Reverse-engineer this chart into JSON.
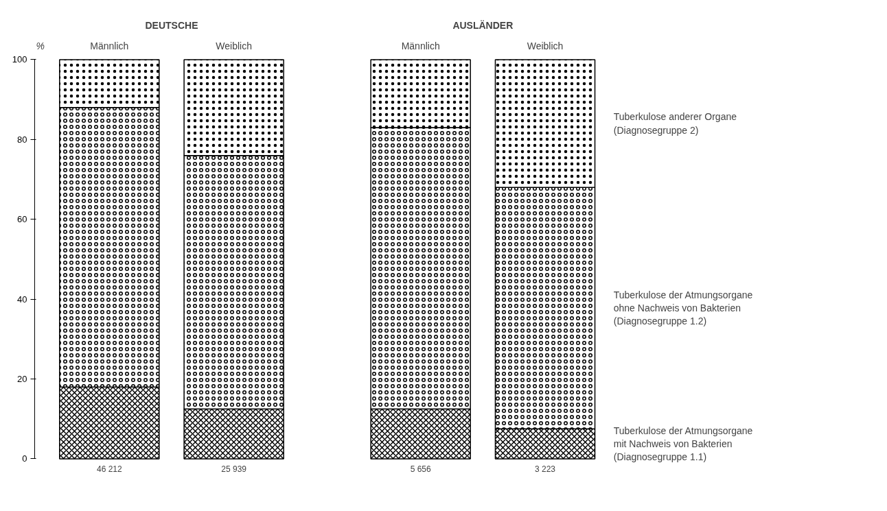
{
  "chart_data": {
    "type": "bar",
    "stacked": true,
    "ylabel": "%",
    "categories": [
      "Männlich",
      "Weiblich",
      "Männlich",
      "Weiblich"
    ],
    "series": [
      {
        "name": "Tuberkulose der Atmungsorgane\nmit Nachweis von Bakterien\n(Diagnosegruppe 1.1)",
        "color": "#000000",
        "values": [
          18,
          12.5,
          12.5,
          7.5
        ]
      },
      {
        "name": "Tuberkulose der Atmungsorgane\nohne Nachweis von Bakterien\n(Diagnosegruppe 1.2)",
        "color": "#000000",
        "values": [
          70,
          63.5,
          70.5,
          60.5
        ]
      },
      {
        "name": "Tuberkulose anderer Organe\n(Diagnosegruppe 2)",
        "color": "#000000",
        "values": [
          12,
          24,
          17,
          32
        ]
      }
    ],
    "ylim": [
      0,
      100
    ],
    "yticks": [
      0,
      20,
      40,
      60,
      80,
      100
    ],
    "grid": false,
    "legend": false,
    "annotations": [
      "DEUTSCHE",
      "AUSLÄNDER",
      "46 212",
      "25 939",
      "5 656",
      "3 223"
    ]
  }
}
